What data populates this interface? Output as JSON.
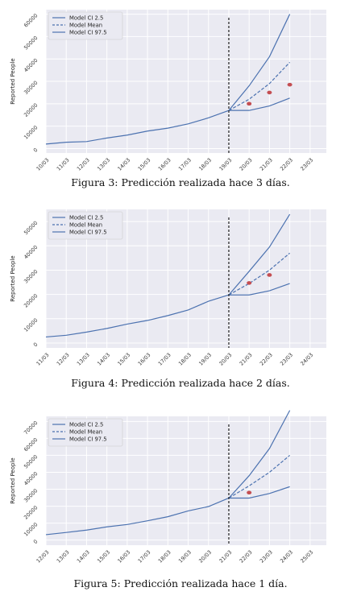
{
  "figures": [
    {
      "caption": "Figura 3: Predicción realizada hace 3 días.",
      "chart_data": {
        "type": "line",
        "ylabel": "Reported People",
        "xlabel": "",
        "x_ticks": [
          "10/03",
          "11/03",
          "12/03",
          "13/03",
          "14/03",
          "15/03",
          "16/03",
          "17/03",
          "18/03",
          "19/03",
          "20/03",
          "21/03",
          "22/03",
          "23/03"
        ],
        "y_ticks": [
          0,
          10000,
          20000,
          30000,
          40000,
          50000,
          60000
        ],
        "ylim": [
          -2000,
          62000
        ],
        "xlim": [
          0,
          13.8
        ],
        "grid": true,
        "legend_position": "top-left",
        "vline_x": 9,
        "history": {
          "x": [
            0,
            1,
            2,
            3,
            4,
            5,
            6,
            7,
            8,
            9
          ],
          "y": [
            2000,
            2800,
            3100,
            4700,
            6000,
            7800,
            9100,
            11000,
            13700,
            17000
          ]
        },
        "series": [
          {
            "name": "Model CI 2.5",
            "x": [
              9,
              10,
              11,
              12
            ],
            "y": [
              17000,
              17000,
              19000,
              22500
            ]
          },
          {
            "name": "Model Mean",
            "x": [
              9,
              10,
              11,
              12
            ],
            "y": [
              17000,
              22000,
              29000,
              38500
            ]
          },
          {
            "name": "Model CI 97.5",
            "x": [
              9,
              10,
              11,
              12
            ],
            "y": [
              17000,
              28000,
              41000,
              60000
            ]
          }
        ],
        "observed": {
          "x": [
            10,
            11,
            12
          ],
          "y": [
            20000,
            25000,
            28500
          ]
        }
      }
    },
    {
      "caption": "Figura 4: Predicción realizada hace 2 días.",
      "chart_data": {
        "type": "line",
        "ylabel": "Reported People",
        "xlabel": "",
        "x_ticks": [
          "11/03",
          "12/03",
          "13/03",
          "14/03",
          "15/03",
          "16/03",
          "17/03",
          "18/03",
          "19/03",
          "20/03",
          "21/03",
          "22/03",
          "23/03",
          "24/03"
        ],
        "y_ticks": [
          0,
          10000,
          20000,
          30000,
          40000,
          50000
        ],
        "ylim": [
          -2000,
          55000
        ],
        "xlim": [
          0,
          13.8
        ],
        "grid": true,
        "legend_position": "top-left",
        "vline_x": 9,
        "history": {
          "x": [
            0,
            1,
            2,
            3,
            4,
            5,
            6,
            7,
            8,
            9
          ],
          "y": [
            2500,
            3200,
            4500,
            6000,
            7800,
            9300,
            11300,
            13600,
            17200,
            19800
          ]
        },
        "series": [
          {
            "name": "Model CI 2.5",
            "x": [
              9,
              10,
              11,
              12
            ],
            "y": [
              19800,
              19800,
              21500,
              24500
            ]
          },
          {
            "name": "Model Mean",
            "x": [
              9,
              10,
              11,
              12
            ],
            "y": [
              19800,
              24500,
              30000,
              37000
            ]
          },
          {
            "name": "Model CI 97.5",
            "x": [
              9,
              10,
              11,
              12
            ],
            "y": [
              19800,
              29500,
              39500,
              53000
            ]
          }
        ],
        "observed": {
          "x": [
            10,
            11
          ],
          "y": [
            24700,
            28000
          ]
        }
      }
    },
    {
      "caption": "Figura 5: Predicción realizada hace 1 día.",
      "chart_data": {
        "type": "line",
        "ylabel": "Reported People",
        "xlabel": "",
        "x_ticks": [
          "12/03",
          "13/03",
          "14/03",
          "15/03",
          "16/03",
          "17/03",
          "18/03",
          "19/03",
          "20/03",
          "21/03",
          "22/03",
          "23/03",
          "24/03",
          "25/03"
        ],
        "y_ticks": [
          0,
          10000,
          20000,
          30000,
          40000,
          50000,
          60000,
          70000
        ],
        "ylim": [
          -3000,
          73000
        ],
        "xlim": [
          0,
          13.8
        ],
        "grid": true,
        "legend_position": "top-left",
        "vline_x": 9,
        "history": {
          "x": [
            0,
            1,
            2,
            3,
            4,
            5,
            6,
            7,
            8,
            9
          ],
          "y": [
            3200,
            4500,
            5900,
            7800,
            9200,
            11400,
            13800,
            17200,
            19800,
            24800
          ]
        },
        "series": [
          {
            "name": "Model CI 2.5",
            "x": [
              9,
              10,
              11,
              12
            ],
            "y": [
              24800,
              24800,
              27500,
              31500
            ]
          },
          {
            "name": "Model Mean",
            "x": [
              9,
              10,
              11,
              12
            ],
            "y": [
              24800,
              32000,
              40000,
              50000
            ]
          },
          {
            "name": "Model CI 97.5",
            "x": [
              9,
              10,
              11,
              12
            ],
            "y": [
              24800,
              38000,
              54000,
              76500
            ]
          }
        ],
        "observed": {
          "x": [
            10
          ],
          "y": [
            28000
          ]
        }
      }
    }
  ],
  "colors": {
    "line": "#4c72b0",
    "observed": "#c44e52",
    "vline": "#222222",
    "plot_bg": "#eaeaf2",
    "grid": "#ffffff"
  }
}
